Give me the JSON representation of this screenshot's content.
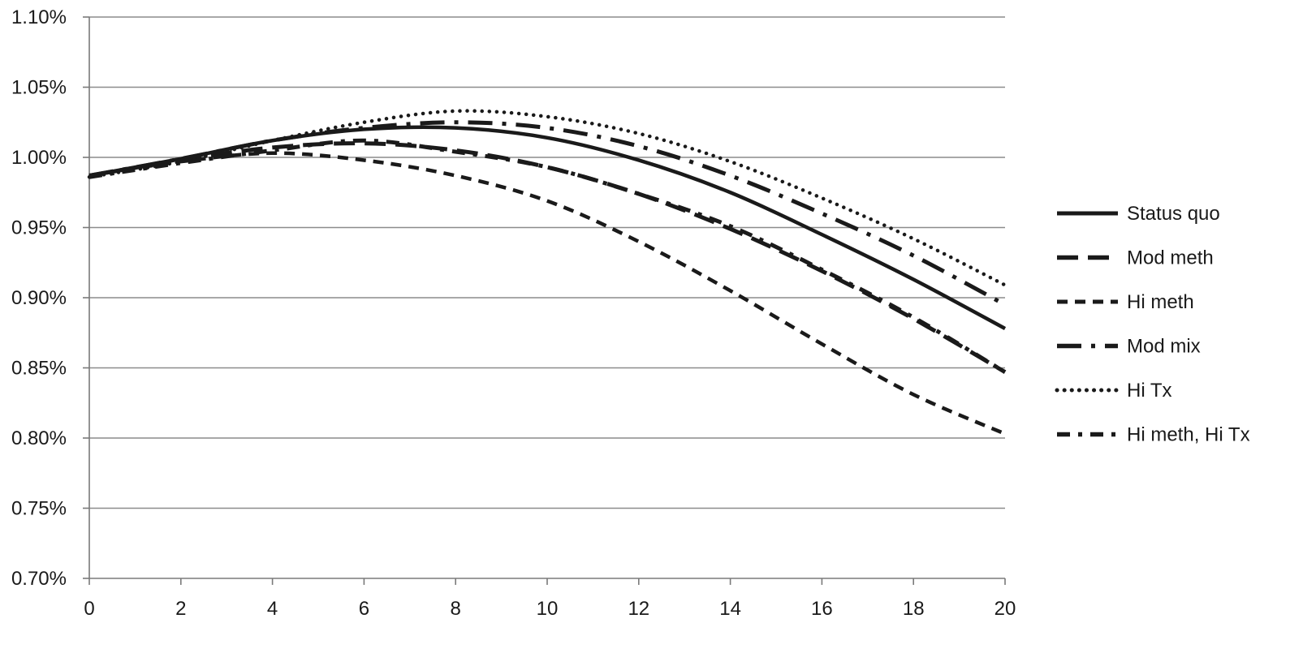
{
  "chart_data": {
    "type": "line",
    "title": "",
    "xlabel": "",
    "ylabel": "",
    "xlim": [
      0,
      20
    ],
    "ylim": [
      0.7,
      1.1
    ],
    "x_ticks": [
      0,
      2,
      4,
      6,
      8,
      10,
      12,
      14,
      16,
      18,
      20
    ],
    "x_tick_labels": [
      "0",
      "2",
      "4",
      "6",
      "8",
      "10",
      "12",
      "14",
      "16",
      "18",
      "20"
    ],
    "y_ticks": [
      0.7,
      0.75,
      0.8,
      0.85,
      0.9,
      0.95,
      1.0,
      1.05,
      1.1
    ],
    "y_tick_labels": [
      "0.70%",
      "0.75%",
      "0.80%",
      "0.85%",
      "0.90%",
      "0.95%",
      "1.00%",
      "1.05%",
      "1.10%"
    ],
    "grid": "horizontal",
    "legend_position": "right",
    "series": [
      {
        "name": "Status quo",
        "style": "solid",
        "x": [
          0,
          2,
          4,
          6,
          8,
          10,
          12,
          14,
          16,
          18,
          20
        ],
        "y": [
          0.987,
          0.999,
          1.012,
          1.02,
          1.021,
          1.014,
          0.998,
          0.975,
          0.945,
          0.913,
          0.878
        ]
      },
      {
        "name": "Mod meth",
        "style": "long-dash",
        "x": [
          0,
          2,
          4,
          6,
          8,
          10,
          12,
          14,
          16,
          18,
          20
        ],
        "y": [
          0.987,
          0.998,
          1.007,
          1.01,
          1.005,
          0.993,
          0.974,
          0.949,
          0.919,
          0.885,
          0.847
        ]
      },
      {
        "name": "Hi meth",
        "style": "short-dash",
        "x": [
          0,
          2,
          4,
          6,
          8,
          10,
          12,
          14,
          16,
          18,
          20
        ],
        "y": [
          0.987,
          0.997,
          1.003,
          0.998,
          0.987,
          0.969,
          0.94,
          0.905,
          0.867,
          0.831,
          0.803
        ]
      },
      {
        "name": "Mod mix",
        "style": "dash-dot",
        "x": [
          0,
          2,
          4,
          6,
          8,
          10,
          12,
          14,
          16,
          18,
          20
        ],
        "y": [
          0.987,
          0.999,
          1.012,
          1.021,
          1.025,
          1.021,
          1.008,
          0.987,
          0.96,
          0.93,
          0.895
        ]
      },
      {
        "name": "Hi Tx",
        "style": "dotted",
        "x": [
          0,
          2,
          4,
          6,
          8,
          10,
          12,
          14,
          16,
          18,
          20
        ],
        "y": [
          0.986,
          0.997,
          1.012,
          1.025,
          1.033,
          1.029,
          1.017,
          0.997,
          0.971,
          0.942,
          0.909
        ]
      },
      {
        "name": "Hi meth, Hi Tx",
        "style": "dash-dot-heavy",
        "x": [
          0,
          2,
          4,
          6,
          8,
          10,
          12,
          14,
          16,
          18,
          20
        ],
        "y": [
          0.986,
          0.996,
          1.005,
          1.012,
          1.004,
          0.993,
          0.974,
          0.951,
          0.92,
          0.886,
          0.847
        ]
      }
    ]
  }
}
